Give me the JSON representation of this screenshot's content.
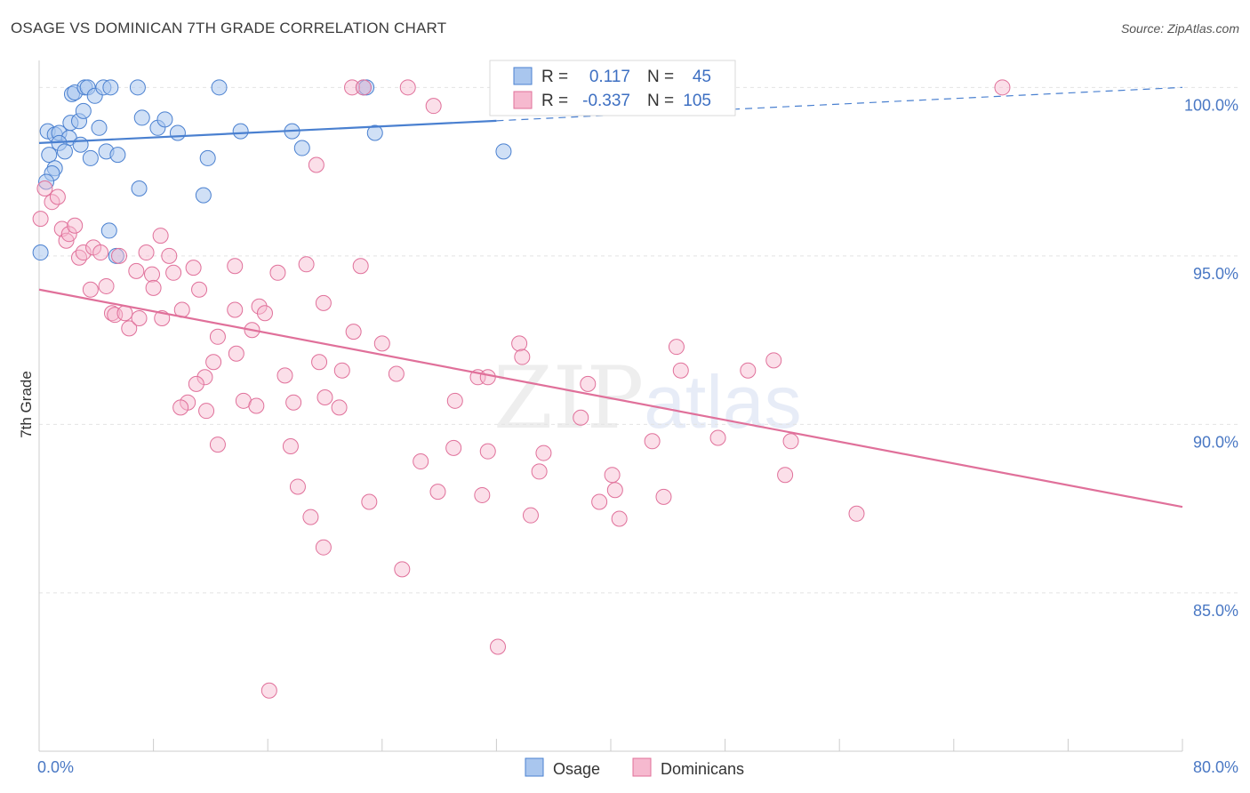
{
  "title": "OSAGE VS DOMINICAN 7TH GRADE CORRELATION CHART",
  "source": "Source: ZipAtlas.com",
  "watermark": {
    "zip": "ZIP",
    "atlas": "atlas"
  },
  "colors": {
    "osage": "#4a80d0",
    "osage_fill": "#a9c6ee",
    "dominicans": "#e0709a",
    "dominicans_fill": "#f6b9cf",
    "tick": "#4a78c4",
    "grid": "#e4e4e4"
  },
  "legend_box": {
    "rows": [
      {
        "r_label": "R =",
        "r_value": "0.117",
        "n_label": "N =",
        "n_value": "45"
      },
      {
        "r_label": "R =",
        "r_value": "-0.337",
        "n_label": "N =",
        "n_value": "105"
      }
    ]
  },
  "bottom_legend": [
    "Osage",
    "Dominicans"
  ],
  "chart_data": {
    "type": "scatter",
    "xlabel": "",
    "ylabel": "7th Grade",
    "xlim": [
      0,
      80
    ],
    "ylim": [
      80.3,
      100.8
    ],
    "x_tick_labels": [
      "0.0%",
      "80.0%"
    ],
    "y_ticks": [
      85,
      90,
      95,
      100
    ],
    "y_tick_labels": [
      "85.0%",
      "90.0%",
      "95.0%",
      "100.0%"
    ],
    "grid": true,
    "series": [
      {
        "name": "Osage",
        "color": "#4a80d0",
        "trend": {
          "x0": 0,
          "y0": 98.35,
          "x1": 80,
          "y1": 100.0,
          "solid_until": 32
        },
        "points": [
          [
            2.3,
            99.8
          ],
          [
            2.5,
            99.85
          ],
          [
            3.2,
            100.0
          ],
          [
            3.4,
            100.0
          ],
          [
            3.9,
            99.75
          ],
          [
            4.5,
            100.0
          ],
          [
            5.0,
            100.0
          ],
          [
            6.9,
            100.0
          ],
          [
            12.6,
            100.0
          ],
          [
            22.7,
            100.0
          ],
          [
            22.9,
            100.0
          ],
          [
            32.7,
            100.0
          ],
          [
            0.6,
            98.7
          ],
          [
            1.1,
            98.6
          ],
          [
            1.4,
            98.65
          ],
          [
            2.1,
            98.5
          ],
          [
            1.4,
            98.35
          ],
          [
            2.2,
            98.95
          ],
          [
            2.8,
            99.0
          ],
          [
            3.1,
            99.3
          ],
          [
            4.2,
            98.8
          ],
          [
            7.2,
            99.1
          ],
          [
            8.3,
            98.8
          ],
          [
            8.8,
            99.05
          ],
          [
            9.7,
            98.65
          ],
          [
            14.1,
            98.7
          ],
          [
            17.7,
            98.7
          ],
          [
            23.5,
            98.65
          ],
          [
            0.7,
            98.0
          ],
          [
            1.8,
            98.1
          ],
          [
            2.9,
            98.3
          ],
          [
            3.6,
            97.9
          ],
          [
            4.7,
            98.1
          ],
          [
            5.5,
            98.0
          ],
          [
            11.8,
            97.9
          ],
          [
            18.4,
            98.2
          ],
          [
            32.5,
            98.1
          ],
          [
            1.1,
            97.6
          ],
          [
            0.9,
            97.45
          ],
          [
            0.5,
            97.2
          ],
          [
            7.0,
            97.0
          ],
          [
            11.5,
            96.8
          ],
          [
            4.9,
            95.75
          ],
          [
            5.4,
            95.0
          ],
          [
            0.1,
            95.1
          ]
        ]
      },
      {
        "name": "Dominicans",
        "color": "#e0709a",
        "trend": {
          "x0": 0,
          "y0": 94.0,
          "x1": 80,
          "y1": 87.55
        },
        "points": [
          [
            21.9,
            100.0
          ],
          [
            22.7,
            100.0
          ],
          [
            25.8,
            100.0
          ],
          [
            32.6,
            100.0
          ],
          [
            45.8,
            100.0
          ],
          [
            67.4,
            100.0
          ],
          [
            27.6,
            99.45
          ],
          [
            19.4,
            97.7
          ],
          [
            0.1,
            96.1
          ],
          [
            0.4,
            97.0
          ],
          [
            0.9,
            96.6
          ],
          [
            1.3,
            96.75
          ],
          [
            1.6,
            95.8
          ],
          [
            1.9,
            95.45
          ],
          [
            2.1,
            95.65
          ],
          [
            2.5,
            95.9
          ],
          [
            2.8,
            94.95
          ],
          [
            3.1,
            95.1
          ],
          [
            3.8,
            95.25
          ],
          [
            4.3,
            95.1
          ],
          [
            5.6,
            95.0
          ],
          [
            7.5,
            95.1
          ],
          [
            8.5,
            95.6
          ],
          [
            9.1,
            95.0
          ],
          [
            10.8,
            94.65
          ],
          [
            13.7,
            94.7
          ],
          [
            16.7,
            94.5
          ],
          [
            18.7,
            94.75
          ],
          [
            22.5,
            94.7
          ],
          [
            3.6,
            94.0
          ],
          [
            4.7,
            94.1
          ],
          [
            6.8,
            94.55
          ],
          [
            7.9,
            94.45
          ],
          [
            8.0,
            94.05
          ],
          [
            9.4,
            94.5
          ],
          [
            11.2,
            94.0
          ],
          [
            5.1,
            93.3
          ],
          [
            5.3,
            93.25
          ],
          [
            6.0,
            93.3
          ],
          [
            6.3,
            92.85
          ],
          [
            7.0,
            93.15
          ],
          [
            8.6,
            93.15
          ],
          [
            10.0,
            93.4
          ],
          [
            13.7,
            93.4
          ],
          [
            15.4,
            93.5
          ],
          [
            15.8,
            93.3
          ],
          [
            22.0,
            92.75
          ],
          [
            14.9,
            92.8
          ],
          [
            19.9,
            93.6
          ],
          [
            12.5,
            92.6
          ],
          [
            13.8,
            92.1
          ],
          [
            12.2,
            91.85
          ],
          [
            11.6,
            91.4
          ],
          [
            11.0,
            91.2
          ],
          [
            17.2,
            91.45
          ],
          [
            19.6,
            91.85
          ],
          [
            21.2,
            91.6
          ],
          [
            24.0,
            92.4
          ],
          [
            25.0,
            91.5
          ],
          [
            30.7,
            91.4
          ],
          [
            31.4,
            91.4
          ],
          [
            33.6,
            92.4
          ],
          [
            33.8,
            92.0
          ],
          [
            38.4,
            91.2
          ],
          [
            44.6,
            92.3
          ],
          [
            44.9,
            91.6
          ],
          [
            49.6,
            91.6
          ],
          [
            51.4,
            91.9
          ],
          [
            10.4,
            90.65
          ],
          [
            9.9,
            90.5
          ],
          [
            11.7,
            90.4
          ],
          [
            14.3,
            90.7
          ],
          [
            15.2,
            90.55
          ],
          [
            17.8,
            90.65
          ],
          [
            20.0,
            90.8
          ],
          [
            21.0,
            90.5
          ],
          [
            29.1,
            90.7
          ],
          [
            37.9,
            90.2
          ],
          [
            12.5,
            89.4
          ],
          [
            17.6,
            89.35
          ],
          [
            26.7,
            88.9
          ],
          [
            29.0,
            89.3
          ],
          [
            31.4,
            89.2
          ],
          [
            35.3,
            89.15
          ],
          [
            42.9,
            89.5
          ],
          [
            47.5,
            89.6
          ],
          [
            52.6,
            89.5
          ],
          [
            18.1,
            88.15
          ],
          [
            27.9,
            88.0
          ],
          [
            31.0,
            87.9
          ],
          [
            35.0,
            88.6
          ],
          [
            40.1,
            88.5
          ],
          [
            40.3,
            88.05
          ],
          [
            39.2,
            87.7
          ],
          [
            43.7,
            87.85
          ],
          [
            52.2,
            88.5
          ],
          [
            23.1,
            87.7
          ],
          [
            19.0,
            87.25
          ],
          [
            34.4,
            87.3
          ],
          [
            40.6,
            87.2
          ],
          [
            57.2,
            87.35
          ],
          [
            19.9,
            86.35
          ],
          [
            25.4,
            85.7
          ],
          [
            32.1,
            83.4
          ],
          [
            16.1,
            82.1
          ]
        ]
      }
    ]
  }
}
